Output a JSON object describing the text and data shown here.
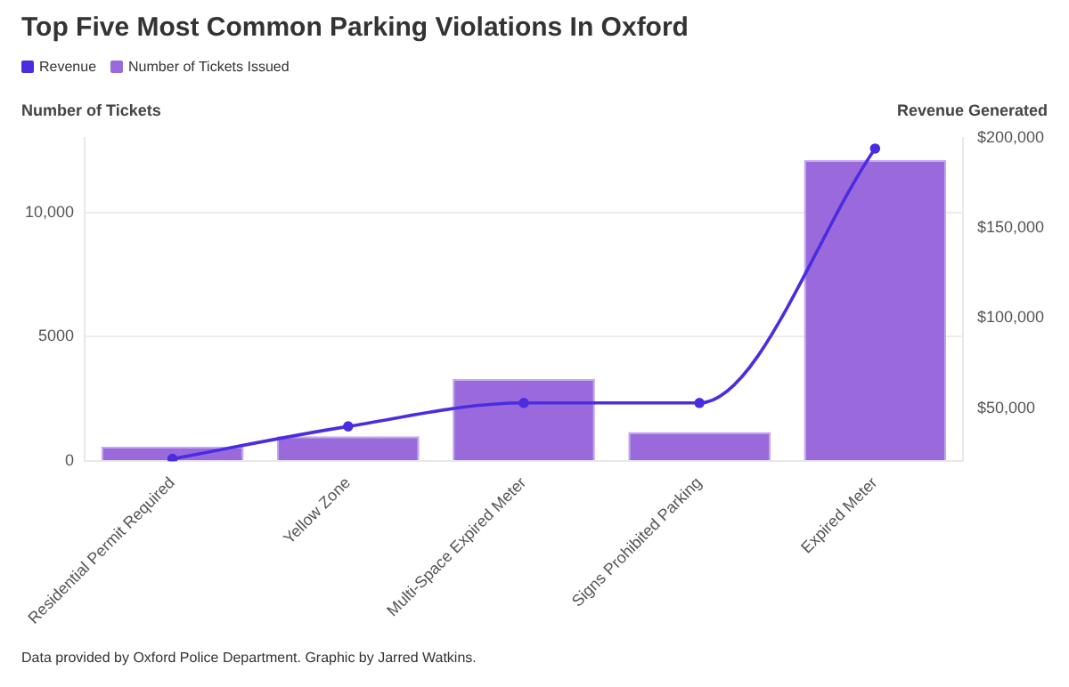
{
  "chart_data": {
    "type": "bar",
    "title": "Top Five Most Common Parking Violations In Oxford",
    "categories": [
      "Residential Permit Required",
      "Yellow Zone",
      "Multi-Space Expired Meter",
      "Signs Prohibited Parking",
      "Expired Meter"
    ],
    "series": [
      {
        "name": "Revenue",
        "type": "line",
        "axis": "y2",
        "color": "#4a2de0",
        "values": [
          22000,
          40000,
          53000,
          53000,
          194000
        ]
      },
      {
        "name": "Number of Tickets Issued",
        "color": "#9a6add",
        "values": [
          580,
          1000,
          3310,
          1170,
          12100
        ]
      }
    ],
    "ylabel": "Number of Tickets",
    "y2label": "Revenue Generated",
    "ylim": [
      0,
      13000
    ],
    "yticks": [
      0,
      5000,
      {
        "value": 10000,
        "label": "10,000"
      }
    ],
    "y2lim": [
      20700,
      200000
    ],
    "y2ticks": [
      {
        "value": 50000,
        "label": "$50,000"
      },
      {
        "value": 100000,
        "label": "$100,000"
      },
      {
        "value": 150000,
        "label": "$150,000"
      },
      {
        "value": 200000,
        "label": "$200,000"
      }
    ],
    "grid": "y",
    "legend": "top left",
    "marker": "circle",
    "annotations": [
      "Data provided by Oxford Police Department. Graphic by Jarred Watkins."
    ]
  }
}
